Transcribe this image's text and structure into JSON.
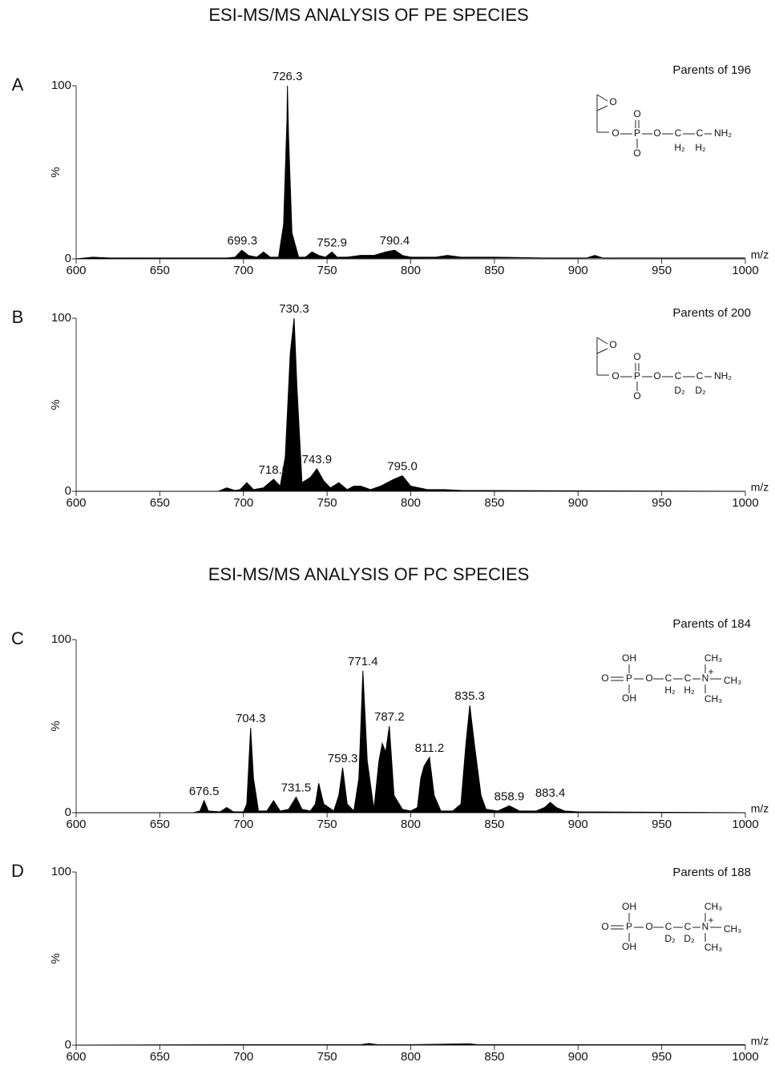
{
  "chart_data": [
    {
      "type": "area",
      "title": "ESI-MS/MS ANALYSIS OF PE SPECIES",
      "panel": "A",
      "annotation": "Parents of 196",
      "structure": [
        "O",
        "O",
        "P",
        "O",
        "O",
        "O",
        "C",
        "C",
        "NH₂",
        "H₂",
        "H₂"
      ],
      "xlabel": "m/z",
      "ylabel": "%",
      "color": "#000000",
      "xlim": [
        600,
        1000
      ],
      "xticks": [
        600,
        650,
        700,
        750,
        800,
        850,
        900,
        950,
        1000
      ],
      "ylim": [
        0,
        100
      ],
      "yticks": [
        0,
        100
      ],
      "x": [
        600,
        610,
        620,
        680,
        690,
        695,
        699,
        703,
        708,
        712,
        716,
        721,
        724,
        726,
        726.3,
        727,
        729,
        733,
        737,
        741,
        745,
        749,
        752.9,
        756,
        762,
        770,
        778,
        785,
        790.4,
        795,
        800,
        815,
        822,
        830,
        850,
        880,
        905,
        910,
        915,
        950,
        1000
      ],
      "values": [
        0,
        1,
        0.5,
        0.5,
        0.5,
        1,
        5,
        2,
        1,
        4,
        1,
        1,
        20,
        80,
        100,
        70,
        15,
        1,
        1,
        4,
        2,
        1,
        4,
        1,
        1,
        2,
        2,
        4,
        5,
        2,
        1,
        1,
        2,
        1,
        1,
        0.5,
        0.5,
        2,
        0.5,
        0.5,
        0.5
      ],
      "peak_labels": [
        699.3,
        726.3,
        752.9,
        790.4
      ]
    },
    {
      "type": "area",
      "panel": "B",
      "annotation": "Parents of 200",
      "structure": [
        "O",
        "O",
        "P",
        "O",
        "O",
        "O",
        "C",
        "C",
        "NH₂",
        "D₂",
        "D₂"
      ],
      "xlabel": "m/z",
      "ylabel": "%",
      "color": "#000000",
      "xlim": [
        600,
        1000
      ],
      "xticks": [
        600,
        650,
        700,
        750,
        800,
        850,
        900,
        950,
        1000
      ],
      "ylim": [
        0,
        100
      ],
      "yticks": [
        0,
        100
      ],
      "x": [
        600,
        685,
        690,
        695,
        698,
        702,
        706,
        712,
        718,
        722,
        725,
        728,
        730.3,
        732,
        735,
        740,
        743.9,
        748,
        752,
        757,
        762,
        766,
        770,
        776,
        782,
        790,
        795,
        800,
        810,
        820,
        830,
        1000
      ],
      "values": [
        0,
        0,
        2,
        0.5,
        1,
        5,
        1,
        2,
        7,
        3,
        20,
        80,
        100,
        60,
        5,
        8,
        13,
        6,
        2,
        5,
        1,
        3,
        3,
        1,
        3,
        7,
        9,
        3,
        1,
        1,
        0.5,
        0
      ],
      "peak_labels": [
        {
          "value": 718,
          "label": "718.0"
        },
        730.3,
        743.9,
        {
          "value": 795,
          "label": "795.0"
        }
      ]
    },
    {
      "type": "area",
      "title": "ESI-MS/MS ANALYSIS OF PC SPECIES",
      "panel": "C",
      "annotation": "Parents of 184",
      "structure": [
        "OH",
        "O",
        "P",
        "OH",
        "O",
        "C",
        "C",
        "N",
        "+",
        "CH₃",
        "CH₃",
        "CH₃",
        "H₂",
        "H₂"
      ],
      "xlabel": "m/z",
      "ylabel": "%",
      "color": "#000000",
      "xlim": [
        600,
        1000
      ],
      "xticks": [
        600,
        650,
        700,
        750,
        800,
        850,
        900,
        950,
        1000
      ],
      "ylim": [
        0,
        100
      ],
      "yticks": [
        0,
        100
      ],
      "x": [
        600,
        670,
        674,
        676.5,
        679,
        686,
        690,
        694,
        700,
        702,
        704.3,
        706,
        709,
        714,
        718,
        722,
        727,
        731.5,
        735,
        740,
        743,
        745,
        748,
        754,
        757,
        759.3,
        762,
        766,
        769,
        771.4,
        774,
        778,
        781,
        783,
        785,
        787.2,
        790,
        795,
        800,
        804,
        806,
        808,
        811.2,
        814,
        818,
        825,
        830,
        833,
        835.3,
        838,
        842,
        845,
        852,
        858.9,
        865,
        875,
        880,
        883.4,
        887,
        892,
        900,
        1000
      ],
      "values": [
        0,
        0,
        1,
        7,
        1,
        0.5,
        3,
        0.5,
        0.5,
        5,
        49,
        20,
        1,
        1,
        7,
        1,
        2,
        9,
        2,
        1,
        5,
        17,
        5,
        1,
        10,
        26,
        5,
        1,
        20,
        82,
        30,
        2,
        30,
        40,
        35,
        50,
        10,
        2,
        1,
        3,
        20,
        27,
        32,
        10,
        1,
        1,
        5,
        40,
        62,
        40,
        10,
        2,
        1,
        4,
        1,
        1,
        3,
        6,
        3,
        1,
        0.5,
        0
      ],
      "peak_labels": [
        676.5,
        704.3,
        731.5,
        759.3,
        771.4,
        787.2,
        811.2,
        835.3,
        858.9,
        883.4
      ]
    },
    {
      "type": "area",
      "panel": "D",
      "annotation": "Parents of 188",
      "structure": [
        "OH",
        "O",
        "P",
        "OH",
        "O",
        "C",
        "C",
        "N",
        "+",
        "CH₃",
        "CH₃",
        "CH₃",
        "D₂",
        "D₂"
      ],
      "xlabel": "m/z",
      "ylabel": "%",
      "color": "#000000",
      "xlim": [
        600,
        1000
      ],
      "xticks": [
        600,
        650,
        700,
        750,
        800,
        850,
        900,
        950,
        1000
      ],
      "ylim": [
        0,
        100
      ],
      "yticks": [
        0,
        100
      ],
      "x": [
        600,
        700,
        770,
        775,
        780,
        800,
        835,
        840,
        1000
      ],
      "values": [
        0,
        0.3,
        0.3,
        1,
        0.3,
        0.3,
        0.8,
        0.3,
        0.3
      ],
      "peak_labels": []
    }
  ]
}
